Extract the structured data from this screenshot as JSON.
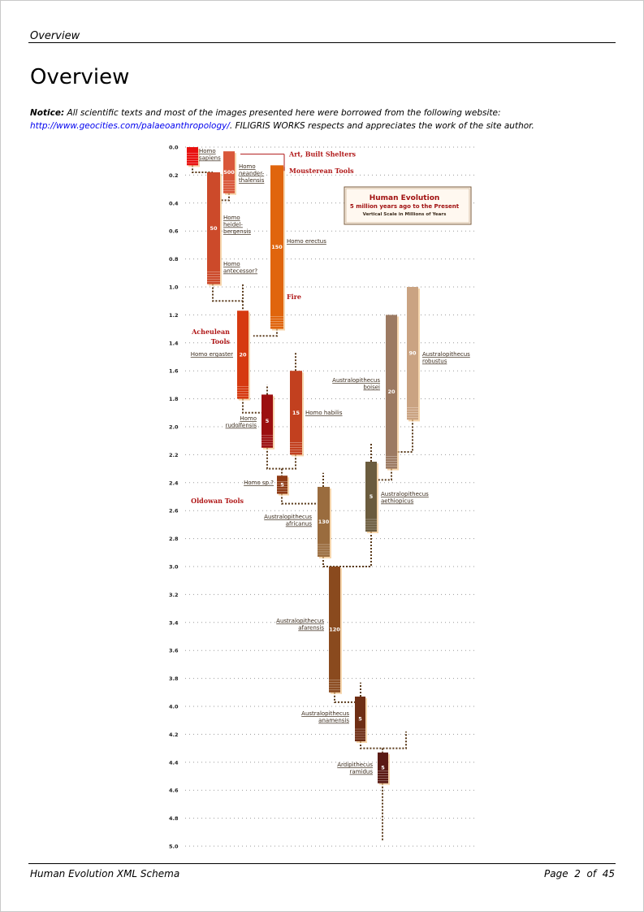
{
  "header": {
    "text": "Overview"
  },
  "page_title": "Overview",
  "notice": {
    "label": "Notice:",
    "text_1": " All scientific texts and most of the images presented here were borrowed from the following website:",
    "link": "http://www.geocities.com/palaeoanthropology/",
    "text_2": ". FILIGRIS WORKS respects and appreciates the work of the site author."
  },
  "figure": {
    "title": "Human Evolution",
    "subtitle": "5 million years ago to the Present",
    "scale_note": "Vertical Scale in Millions of Years",
    "ticks": [
      "0.0",
      "0.2",
      "0.4",
      "0.6",
      "0.8",
      "1.0",
      "1.2",
      "1.4",
      "1.6",
      "1.8",
      "2.0",
      "2.2",
      "2.4",
      "2.6",
      "2.8",
      "3.0",
      "3.2",
      "3.4",
      "3.6",
      "3.8",
      "4.0",
      "4.2",
      "4.4",
      "4.6",
      "4.8",
      "5.0"
    ],
    "tools": [
      {
        "text": "Art, Built Shelters",
        "at": 0.05
      },
      {
        "text": "Mousterean Tools",
        "at": 0.17
      },
      {
        "text": "Fire",
        "at": 1.07
      },
      {
        "text": "Acheulean",
        "at": 1.32
      },
      {
        "text": "Tools",
        "at": 1.39
      },
      {
        "text": "Oldowan Tools",
        "at": 2.53
      }
    ],
    "species": [
      {
        "name": [
          "Homo",
          "sapiens"
        ],
        "start": 0.0,
        "end": 0.13,
        "value": "",
        "color": "#e8110f"
      },
      {
        "name": [
          "Homo",
          "neander-",
          "thalensis"
        ],
        "start": 0.03,
        "end": 0.33,
        "value": "500",
        "color": "#d9573a"
      },
      {
        "name": [
          "Homo",
          "heidel-",
          "bergensis"
        ],
        "start": 0.18,
        "end": 0.98,
        "value": "50",
        "color": "#cc4a2a"
      },
      {
        "name": [
          "Homo",
          "antecessor?"
        ],
        "start": 0.5,
        "end": 0.98,
        "value": "",
        "color": "#cc4a2a"
      },
      {
        "name": [
          "Homo erectus"
        ],
        "start": 0.13,
        "end": 1.3,
        "value": "150",
        "color": "#e0650d"
      },
      {
        "name": [
          "Homo ergaster"
        ],
        "start": 1.17,
        "end": 1.8,
        "value": "20",
        "color": "#d63a10"
      },
      {
        "name": [
          "Homo",
          "rudolfensis"
        ],
        "start": 1.77,
        "end": 2.15,
        "value": "5",
        "color": "#9c0f10"
      },
      {
        "name": [
          "Homo habilis"
        ],
        "start": 1.6,
        "end": 2.2,
        "value": "15",
        "color": "#c2401f"
      },
      {
        "name": [
          "Homo sp.?"
        ],
        "start": 2.35,
        "end": 2.48,
        "value": "5",
        "color": "#8f3b16"
      },
      {
        "name": [
          "Australopithecus",
          "africanus"
        ],
        "start": 2.43,
        "end": 2.93,
        "value": "130",
        "color": "#9a6c3e"
      },
      {
        "name": [
          "Australopithecus",
          "boisei"
        ],
        "start": 1.2,
        "end": 2.3,
        "value": "20",
        "color": "#9c7a62"
      },
      {
        "name": [
          "Australopithecus",
          "robustus"
        ],
        "start": 1.0,
        "end": 1.95,
        "value": "90",
        "color": "#caa382"
      },
      {
        "name": [
          "Australopithecus",
          "aethiopicus"
        ],
        "start": 2.25,
        "end": 2.75,
        "value": "5",
        "color": "#6b5c3e"
      },
      {
        "name": [
          "Australopithecus",
          "afarensis"
        ],
        "start": 3.0,
        "end": 3.9,
        "value": "120",
        "color": "#8a4a1e"
      },
      {
        "name": [
          "Australopithecus",
          "anamensis"
        ],
        "start": 3.93,
        "end": 4.25,
        "value": "5",
        "color": "#6e2e14"
      },
      {
        "name": [
          "Ardipithecus",
          "ramidus"
        ],
        "start": 4.33,
        "end": 4.55,
        "value": "5",
        "color": "#5a1a14"
      }
    ]
  },
  "footer": {
    "left": "Human Evolution XML Schema",
    "page_label": "Page",
    "page_num": "2",
    "of_label": "of",
    "total": "45"
  }
}
